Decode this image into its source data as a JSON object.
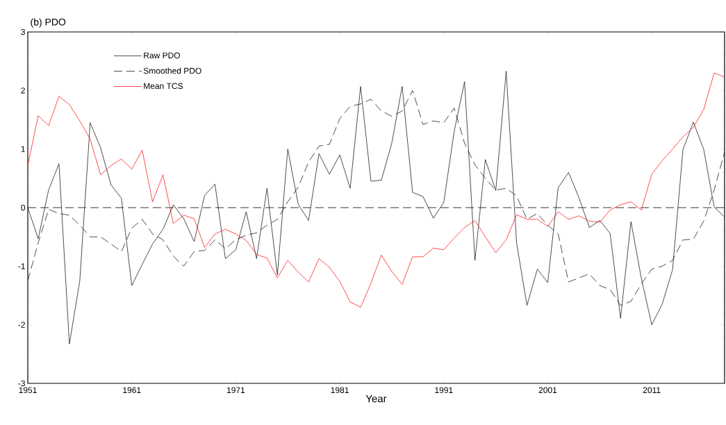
{
  "chart_data": {
    "type": "line",
    "title": "(b) PDO",
    "xlabel": "Year",
    "x": [
      1951,
      1952,
      1953,
      1954,
      1955,
      1956,
      1957,
      1958,
      1959,
      1960,
      1961,
      1962,
      1963,
      1964,
      1965,
      1966,
      1967,
      1968,
      1969,
      1970,
      1971,
      1972,
      1973,
      1974,
      1975,
      1976,
      1977,
      1978,
      1979,
      1980,
      1981,
      1982,
      1983,
      1984,
      1985,
      1986,
      1987,
      1988,
      1989,
      1990,
      1991,
      1992,
      1993,
      1994,
      1995,
      1996,
      1997,
      1998,
      1999,
      2000,
      2001,
      2002,
      2003,
      2004,
      2005,
      2006,
      2007,
      2008,
      2009,
      2010,
      2011,
      2012,
      2013,
      2014,
      2015,
      2016,
      2017,
      2018
    ],
    "series": [
      {
        "name": "Raw PDO",
        "color": "#000000",
        "line_style": "solid",
        "values": [
          0.0,
          -0.53,
          0.3,
          0.75,
          -2.33,
          -1.25,
          1.45,
          1.02,
          0.39,
          0.16,
          -1.33,
          -0.97,
          -0.62,
          -0.37,
          0.05,
          -0.19,
          -0.58,
          0.21,
          0.4,
          -0.87,
          -0.72,
          -0.07,
          -0.87,
          0.33,
          -1.15,
          1.0,
          0.06,
          -0.22,
          0.92,
          0.57,
          0.9,
          0.33,
          2.07,
          0.45,
          0.47,
          1.1,
          2.07,
          0.26,
          0.19,
          -0.18,
          0.09,
          1.3,
          2.15,
          -0.9,
          0.82,
          0.29,
          2.33,
          -0.6,
          -1.67,
          -1.05,
          -1.28,
          0.34,
          0.6,
          0.17,
          -0.34,
          -0.22,
          -0.44,
          -1.89,
          -0.24,
          -1.21,
          -2.0,
          -1.65,
          -1.06,
          0.99,
          1.46,
          0.99,
          0.01,
          -0.16
        ]
      },
      {
        "name": "Smoothed PDO",
        "color": "#000000",
        "line_style": "dashed",
        "values": [
          -1.25,
          -0.6,
          -0.03,
          -0.1,
          -0.13,
          -0.3,
          -0.5,
          -0.5,
          -0.62,
          -0.75,
          -0.35,
          -0.2,
          -0.45,
          -0.55,
          -0.83,
          -1.0,
          -0.75,
          -0.73,
          -0.55,
          -0.7,
          -0.55,
          -0.47,
          -0.43,
          -0.3,
          -0.2,
          0.1,
          0.35,
          0.78,
          1.05,
          1.08,
          1.52,
          1.73,
          1.77,
          1.85,
          1.65,
          1.56,
          1.65,
          2.0,
          1.42,
          1.48,
          1.45,
          1.7,
          1.1,
          0.73,
          0.5,
          0.3,
          0.33,
          0.2,
          -0.2,
          -0.1,
          -0.3,
          -0.45,
          -1.27,
          -1.2,
          -1.13,
          -1.33,
          -1.4,
          -1.67,
          -1.6,
          -1.3,
          -1.05,
          -1.0,
          -0.9,
          -0.55,
          -0.54,
          -0.23,
          0.3,
          0.95
        ]
      },
      {
        "name": "Mean TCS",
        "color": "#ff0000",
        "line_style": "solid",
        "values": [
          0.72,
          1.57,
          1.4,
          1.9,
          1.76,
          1.48,
          1.17,
          0.56,
          0.72,
          0.83,
          0.66,
          0.98,
          0.1,
          0.56,
          -0.27,
          -0.13,
          -0.19,
          -0.68,
          -0.45,
          -0.37,
          -0.45,
          -0.56,
          -0.8,
          -0.86,
          -1.2,
          -0.9,
          -1.1,
          -1.27,
          -0.87,
          -1.02,
          -1.26,
          -1.61,
          -1.7,
          -1.29,
          -0.81,
          -1.09,
          -1.31,
          -0.84,
          -0.84,
          -0.69,
          -0.72,
          -0.52,
          -0.34,
          -0.22,
          -0.5,
          -0.77,
          -0.55,
          -0.12,
          -0.2,
          -0.2,
          -0.32,
          -0.07,
          -0.2,
          -0.14,
          -0.23,
          -0.25,
          -0.04,
          0.05,
          0.1,
          -0.04,
          0.57,
          0.8,
          1.0,
          1.21,
          1.37,
          1.68,
          2.3,
          2.23
        ]
      }
    ],
    "xlim": [
      1951,
      2018
    ],
    "ylim": [
      -3,
      3
    ],
    "xticks": [
      1951,
      1961,
      1971,
      1981,
      1991,
      2001,
      2011
    ],
    "yticks": [
      -3,
      -2,
      -1,
      0,
      1,
      2,
      3
    ],
    "ref_lines": [
      {
        "axis": "y",
        "value": 0,
        "color": "#000000",
        "line_style": "dashed"
      }
    ],
    "grid": false,
    "legend": "top left",
    "marker": "none"
  }
}
